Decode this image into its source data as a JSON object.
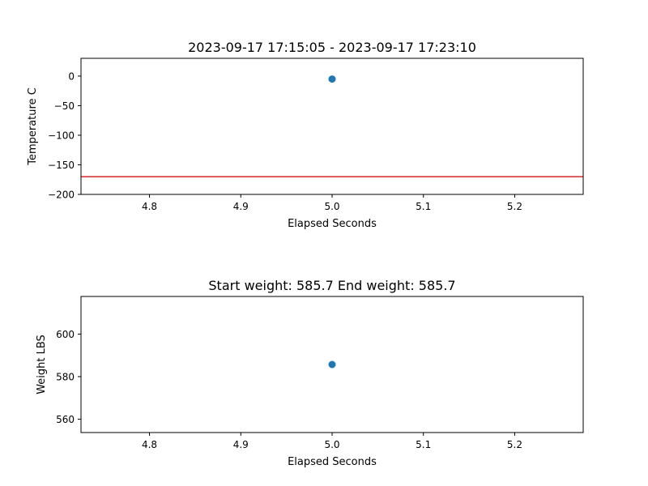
{
  "chart_data": [
    {
      "type": "scatter",
      "title": "2023-09-17 17:15:05 - 2023-09-17 17:23:10",
      "xlabel": "Elapsed Seconds",
      "ylabel": "Temperature C",
      "xlim": [
        4.725,
        5.275
      ],
      "ylim": [
        -200,
        30
      ],
      "xticks": [
        4.8,
        4.9,
        5.0,
        5.1,
        5.2
      ],
      "xtick_labels": [
        "4.8",
        "4.9",
        "5.0",
        "5.1",
        "5.2"
      ],
      "yticks": [
        0,
        -50,
        -100,
        -150,
        -200
      ],
      "ytick_labels": [
        "0",
        "−50",
        "−100",
        "−150",
        "−200"
      ],
      "grid": false,
      "series": [
        {
          "x": [
            5.0
          ],
          "y": [
            -5
          ],
          "color": "#1f77b4"
        }
      ],
      "hlines": [
        {
          "y": -170,
          "color": "#d62728"
        }
      ]
    },
    {
      "type": "scatter",
      "title": "Start weight: 585.7 End weight: 585.7",
      "xlabel": "Elapsed Seconds",
      "ylabel": "Weight LBS",
      "xlim": [
        4.725,
        5.275
      ],
      "ylim": [
        553.7,
        617.7
      ],
      "xticks": [
        4.8,
        4.9,
        5.0,
        5.1,
        5.2
      ],
      "xtick_labels": [
        "4.8",
        "4.9",
        "5.0",
        "5.1",
        "5.2"
      ],
      "yticks": [
        600,
        580,
        560
      ],
      "ytick_labels": [
        "600",
        "580",
        "560"
      ],
      "grid": false,
      "series": [
        {
          "x": [
            5.0
          ],
          "y": [
            585.7
          ],
          "color": "#1f77b4"
        }
      ],
      "hlines": []
    }
  ]
}
